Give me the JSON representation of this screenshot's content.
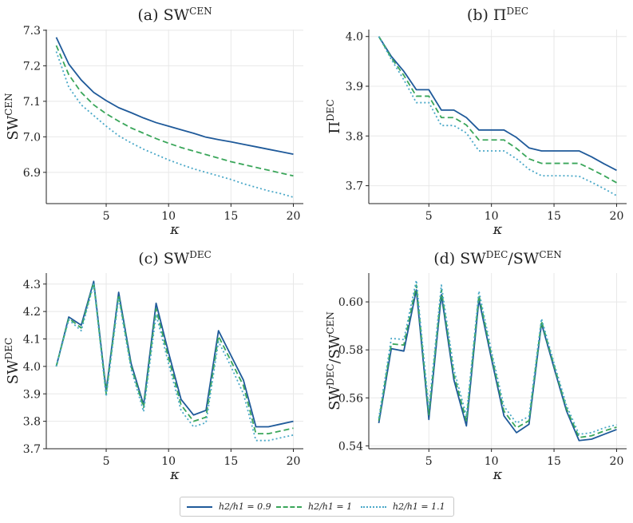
{
  "legend": {
    "entries": [
      {
        "label": "h2/h1 = 0.9",
        "color": "#1f5a9a",
        "dash": "solid"
      },
      {
        "label": "h2/h1 = 1",
        "color": "#3aa65a",
        "dash": "dashed"
      },
      {
        "label": "h2/h1 = 1.1",
        "color": "#4aa8c8",
        "dash": "dotted"
      }
    ]
  },
  "chart_data": [
    {
      "type": "line",
      "title": "(a) SW",
      "title_sup": "CEN",
      "xlabel": "κ",
      "ylabel": "SW",
      "ylabel_sup": "CEN",
      "xlim": [
        0.2,
        20.8
      ],
      "ylim": [
        6.812,
        7.302
      ],
      "xticks": [
        5,
        10,
        15,
        20
      ],
      "yticks": [
        6.9,
        7.0,
        7.1,
        7.2,
        7.3
      ],
      "ytick_labels": [
        "6.9",
        "7.0",
        "7.1",
        "7.2",
        "7.3"
      ],
      "x": [
        1,
        2,
        3,
        4,
        5,
        6,
        7,
        8,
        9,
        10,
        11,
        12,
        13,
        14,
        15,
        16,
        17,
        18,
        19,
        20
      ],
      "series": [
        {
          "name": "h2/h1 = 0.9",
          "values": [
            7.28,
            7.205,
            7.16,
            7.125,
            7.102,
            7.082,
            7.068,
            7.053,
            7.04,
            7.03,
            7.02,
            7.01,
            6.999,
            6.992,
            6.986,
            6.979,
            6.972,
            6.965,
            6.958,
            6.951
          ]
        },
        {
          "name": "h2/h1 = 1",
          "values": [
            7.257,
            7.175,
            7.125,
            7.09,
            7.065,
            7.044,
            7.025,
            7.01,
            6.995,
            6.982,
            6.97,
            6.96,
            6.95,
            6.94,
            6.93,
            6.922,
            6.914,
            6.906,
            6.898,
            6.89
          ]
        },
        {
          "name": "h2/h1 = 1.1",
          "values": [
            7.24,
            7.14,
            7.09,
            7.06,
            7.03,
            7.003,
            6.983,
            6.965,
            6.95,
            6.935,
            6.922,
            6.91,
            6.9,
            6.89,
            6.88,
            6.868,
            6.858,
            6.848,
            6.84,
            6.83
          ]
        }
      ]
    },
    {
      "type": "line",
      "title": "(b) Π",
      "title_sup": "DEC",
      "xlabel": "κ",
      "ylabel": "Π",
      "ylabel_sup": "DEC",
      "xlim": [
        0.2,
        20.8
      ],
      "ylim": [
        3.664,
        4.014
      ],
      "xticks": [
        5,
        10,
        15,
        20
      ],
      "yticks": [
        3.7,
        3.8,
        3.9,
        4.0
      ],
      "ytick_labels": [
        "3.7",
        "3.8",
        "3.9",
        "4.0"
      ],
      "x": [
        1,
        2,
        3,
        4,
        5,
        6,
        7,
        8,
        9,
        10,
        11,
        12,
        13,
        14,
        15,
        16,
        17,
        18,
        19,
        20
      ],
      "series": [
        {
          "name": "h2/h1 = 0.9",
          "values": [
            4.0,
            3.96,
            3.93,
            3.893,
            3.893,
            3.852,
            3.852,
            3.837,
            3.812,
            3.812,
            3.812,
            3.797,
            3.776,
            3.77,
            3.77,
            3.77,
            3.77,
            3.758,
            3.744,
            3.731
          ]
        },
        {
          "name": "h2/h1 = 1",
          "values": [
            4.0,
            3.957,
            3.922,
            3.88,
            3.88,
            3.837,
            3.837,
            3.822,
            3.792,
            3.792,
            3.792,
            3.775,
            3.754,
            3.745,
            3.745,
            3.745,
            3.745,
            3.733,
            3.72,
            3.706
          ]
        },
        {
          "name": "h2/h1 = 1.1",
          "values": [
            4.0,
            3.954,
            3.913,
            3.867,
            3.867,
            3.821,
            3.821,
            3.806,
            3.77,
            3.77,
            3.77,
            3.754,
            3.733,
            3.72,
            3.72,
            3.72,
            3.719,
            3.707,
            3.694,
            3.68
          ]
        }
      ]
    },
    {
      "type": "line",
      "title": "(c) SW",
      "title_sup": "DEC",
      "xlabel": "κ",
      "ylabel": "SW",
      "ylabel_sup": "DEC",
      "xlim": [
        0.2,
        20.8
      ],
      "ylim": [
        3.7,
        4.34
      ],
      "xticks": [
        5,
        10,
        15,
        20
      ],
      "yticks": [
        3.7,
        3.8,
        3.9,
        4.0,
        4.1,
        4.2,
        4.3
      ],
      "ytick_labels": [
        "3.7",
        "3.8",
        "3.9",
        "4.0",
        "4.1",
        "4.2",
        "4.3"
      ],
      "x": [
        1,
        2,
        3,
        4,
        5,
        6,
        7,
        8,
        9,
        10,
        11,
        12,
        13,
        14,
        15,
        16,
        17,
        18,
        19,
        20
      ],
      "series": [
        {
          "name": "h2/h1 = 0.9",
          "values": [
            4.0,
            4.18,
            4.15,
            4.31,
            3.91,
            4.27,
            4.01,
            3.86,
            4.23,
            4.05,
            3.88,
            3.823,
            3.84,
            4.13,
            4.04,
            3.95,
            3.78,
            3.78,
            3.79,
            3.8
          ]
        },
        {
          "name": "h2/h1 = 1",
          "values": [
            4.0,
            4.175,
            4.14,
            4.305,
            3.9,
            4.26,
            4.0,
            3.85,
            4.21,
            4.03,
            3.86,
            3.8,
            3.815,
            4.11,
            4.02,
            3.93,
            3.755,
            3.755,
            3.765,
            3.775
          ]
        },
        {
          "name": "h2/h1 = 1.1",
          "values": [
            4.0,
            4.17,
            4.13,
            4.3,
            3.89,
            4.25,
            3.99,
            3.835,
            4.19,
            4.01,
            3.84,
            3.78,
            3.795,
            4.09,
            4.0,
            3.9,
            3.73,
            3.73,
            3.74,
            3.75
          ]
        }
      ]
    },
    {
      "type": "line",
      "title": "(d) SW",
      "title_sup": "DEC",
      "title_tail": "/SW",
      "title_sup2": "CEN",
      "xlabel": "κ",
      "ylabel": "SW",
      "ylabel_sup": "DEC",
      "ylabel_tail": "/SW",
      "ylabel_sup2": "CEN",
      "xlim": [
        0.2,
        20.8
      ],
      "ylim": [
        0.5388,
        0.612
      ],
      "xticks": [
        5,
        10,
        15,
        20
      ],
      "yticks": [
        0.54,
        0.56,
        0.58,
        0.6
      ],
      "ytick_labels": [
        "0.54",
        "0.56",
        "0.58",
        "0.60"
      ],
      "x": [
        1,
        2,
        3,
        4,
        5,
        6,
        7,
        8,
        9,
        10,
        11,
        12,
        13,
        14,
        15,
        16,
        17,
        18,
        19,
        20
      ],
      "series": [
        {
          "name": "h2/h1 = 0.9",
          "values": [
            0.5495,
            0.5805,
            0.5795,
            0.605,
            0.551,
            0.603,
            0.5675,
            0.5483,
            0.601,
            0.5763,
            0.5525,
            0.5455,
            0.549,
            0.591,
            0.5725,
            0.5545,
            0.5422,
            0.5428,
            0.5448,
            0.5468
          ]
        },
        {
          "name": "h2/h1 = 1",
          "values": [
            0.5505,
            0.5825,
            0.582,
            0.607,
            0.553,
            0.605,
            0.5695,
            0.5505,
            0.6028,
            0.5778,
            0.5545,
            0.5475,
            0.5505,
            0.592,
            0.5735,
            0.5555,
            0.5435,
            0.5442,
            0.5462,
            0.5478
          ]
        },
        {
          "name": "h2/h1 = 1.1",
          "values": [
            0.5515,
            0.5848,
            0.5843,
            0.609,
            0.5555,
            0.607,
            0.5718,
            0.5525,
            0.6045,
            0.5795,
            0.5565,
            0.5495,
            0.5523,
            0.593,
            0.5745,
            0.5568,
            0.5448,
            0.5455,
            0.5475,
            0.5488
          ]
        }
      ]
    }
  ]
}
